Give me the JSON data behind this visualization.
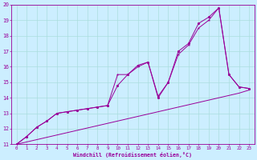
{
  "title": "",
  "xlabel": "Windchill (Refroidissement éolien,°C)",
  "ylabel": "",
  "bg_color": "#cceeff",
  "line_color": "#990099",
  "grid_color": "#aadddd",
  "xlim": [
    -0.5,
    23.5
  ],
  "ylim": [
    11,
    20
  ],
  "xticks": [
    0,
    1,
    2,
    3,
    4,
    5,
    6,
    7,
    8,
    9,
    10,
    11,
    12,
    13,
    14,
    15,
    16,
    17,
    18,
    19,
    20,
    21,
    22,
    23
  ],
  "yticks": [
    11,
    12,
    13,
    14,
    15,
    16,
    17,
    18,
    19,
    20
  ],
  "line1_x": [
    0,
    1,
    2,
    3,
    4,
    5,
    6,
    7,
    8,
    9,
    10,
    11,
    12,
    13,
    14,
    15,
    16,
    17,
    18,
    19,
    20,
    21,
    22,
    23
  ],
  "line1_y": [
    11.0,
    11.15,
    11.3,
    11.45,
    11.6,
    11.75,
    11.9,
    12.05,
    12.2,
    12.35,
    12.5,
    12.65,
    12.8,
    12.95,
    13.1,
    13.25,
    13.4,
    13.55,
    13.7,
    13.85,
    14.0,
    14.15,
    14.3,
    14.5
  ],
  "line2_x": [
    0,
    1,
    2,
    3,
    4,
    5,
    6,
    7,
    8,
    9,
    10,
    11,
    12,
    13,
    14,
    15,
    16,
    17,
    18,
    19,
    20,
    21,
    22,
    23
  ],
  "line2_y": [
    11.0,
    11.5,
    12.1,
    12.5,
    13.0,
    13.1,
    13.2,
    13.3,
    13.4,
    13.5,
    15.5,
    15.5,
    16.0,
    16.3,
    14.1,
    15.0,
    16.8,
    17.4,
    18.5,
    19.0,
    19.8,
    15.5,
    14.7,
    14.6
  ],
  "line3_x": [
    0,
    1,
    2,
    3,
    4,
    5,
    6,
    7,
    8,
    9,
    10,
    11,
    12,
    13,
    14,
    15,
    16,
    17,
    18,
    19,
    20,
    21,
    22,
    23
  ],
  "line3_y": [
    11.0,
    11.5,
    12.1,
    12.5,
    13.0,
    13.1,
    13.2,
    13.3,
    13.4,
    13.5,
    14.8,
    15.5,
    16.1,
    16.3,
    14.0,
    15.0,
    17.0,
    17.5,
    18.8,
    19.2,
    19.8,
    15.5,
    14.7,
    14.6
  ]
}
